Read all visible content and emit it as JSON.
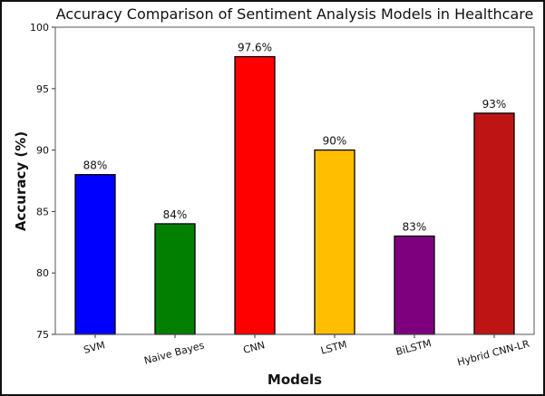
{
  "chart_data": {
    "type": "bar",
    "title": "Accuracy Comparison of Sentiment Analysis Models in Healthcare",
    "xlabel": "Models",
    "ylabel": "Accuracy (%)",
    "ylim": [
      75,
      100
    ],
    "yticks": [
      75,
      80,
      85,
      90,
      95,
      100
    ],
    "grid": false,
    "legend": "none",
    "categories": [
      "SVM",
      "Naive Bayes",
      "CNN",
      "LSTM",
      "BiLSTM",
      "Hybrid CNN-LR"
    ],
    "values": [
      88,
      84,
      97.6,
      90,
      83,
      93
    ],
    "data_labels": [
      "88%",
      "84%",
      "97.6%",
      "90%",
      "83%",
      "93%"
    ],
    "colors": [
      "#0000ff",
      "#007f00",
      "#ff0000",
      "#ffbf00",
      "#7f007f",
      "#bf1414"
    ],
    "xtick_rotation_deg": 15
  }
}
